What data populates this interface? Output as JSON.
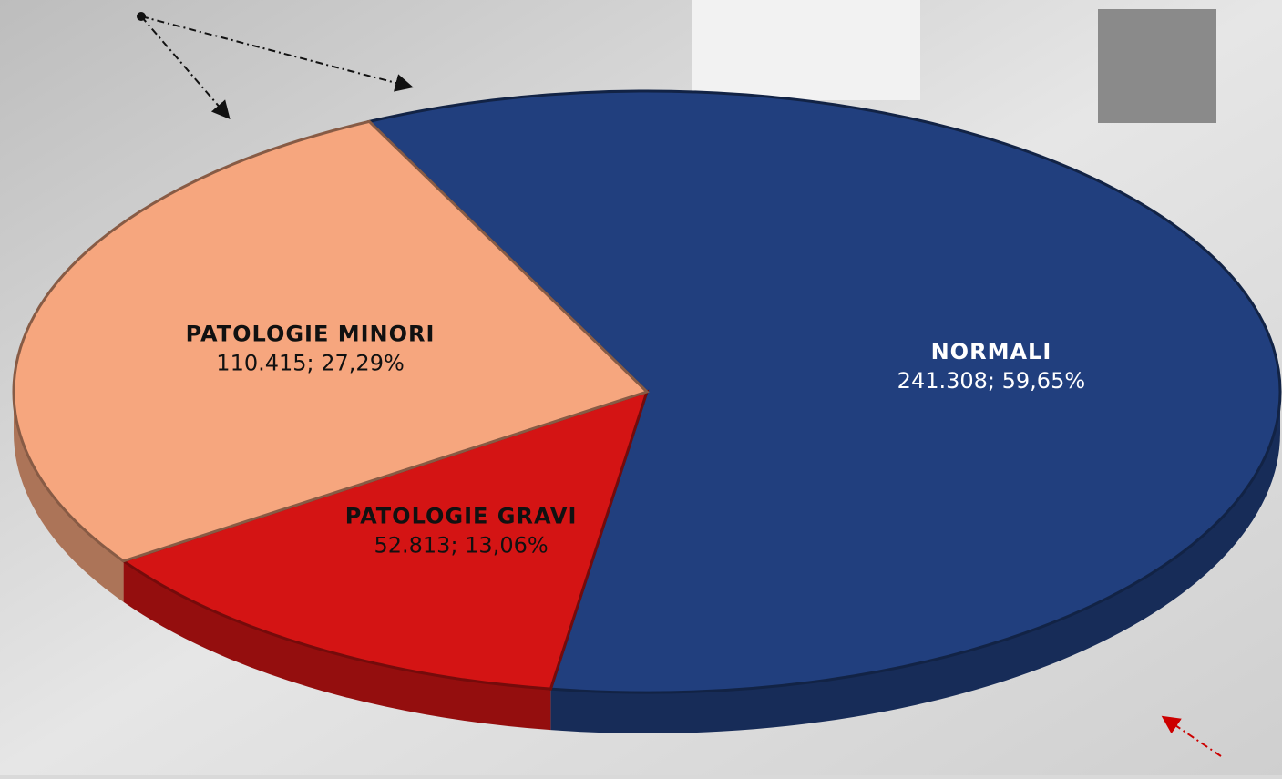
{
  "chart_data": {
    "type": "pie",
    "categories": [
      "NORMALI",
      "PATOLOGIE GRAVI",
      "PATOLOGIE MINORI"
    ],
    "values": [
      241308,
      52813,
      110415
    ],
    "value_labels": [
      "241.308; 59,65%",
      "52.813; 13,06%",
      "110.415; 27,29%"
    ],
    "colors": [
      "#213f7e",
      "#d41414",
      "#f6a67e"
    ]
  }
}
